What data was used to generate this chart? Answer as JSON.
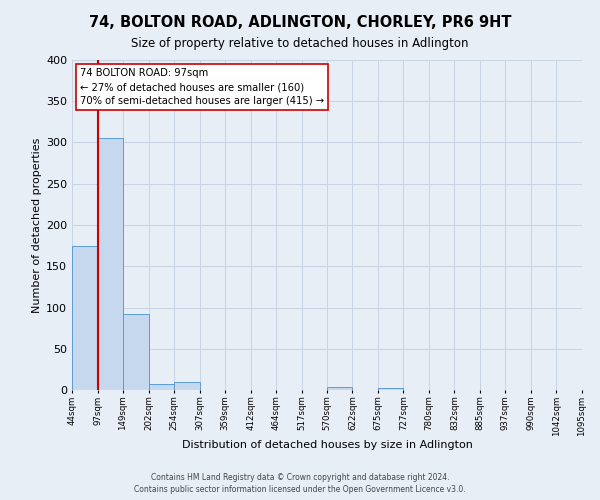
{
  "title": "74, BOLTON ROAD, ADLINGTON, CHORLEY, PR6 9HT",
  "subtitle": "Size of property relative to detached houses in Adlington",
  "xlabel": "Distribution of detached houses by size in Adlington",
  "ylabel": "Number of detached properties",
  "bin_edges": [
    44,
    97,
    149,
    202,
    254,
    307,
    359,
    412,
    464,
    517,
    570,
    622,
    675,
    727,
    780,
    832,
    885,
    937,
    990,
    1042,
    1095
  ],
  "bar_heights": [
    175,
    305,
    92,
    7,
    10,
    0,
    0,
    0,
    0,
    0,
    4,
    0,
    3,
    0,
    0,
    0,
    0,
    0,
    0,
    0
  ],
  "bar_color": "#c5d8ed",
  "bar_edge_color": "#5b9bd5",
  "property_line_x": 97,
  "property_line_color": "#cc0000",
  "ylim": [
    0,
    400
  ],
  "yticks": [
    0,
    50,
    100,
    150,
    200,
    250,
    300,
    350,
    400
  ],
  "annotation_title": "74 BOLTON ROAD: 97sqm",
  "annotation_line1": "← 27% of detached houses are smaller (160)",
  "annotation_line2": "70% of semi-detached houses are larger (415) →",
  "annotation_box_facecolor": "#ffffff",
  "annotation_box_edgecolor": "#cc0000",
  "footer_line1": "Contains HM Land Registry data © Crown copyright and database right 2024.",
  "footer_line2": "Contains public sector information licensed under the Open Government Licence v3.0.",
  "background_color": "#e8eef6",
  "grid_color": "#d0dae8",
  "title_fontsize": 10.5,
  "subtitle_fontsize": 8.5,
  "ylabel_fontsize": 8,
  "xlabel_fontsize": 8,
  "ytick_fontsize": 8,
  "xtick_fontsize": 6.2
}
